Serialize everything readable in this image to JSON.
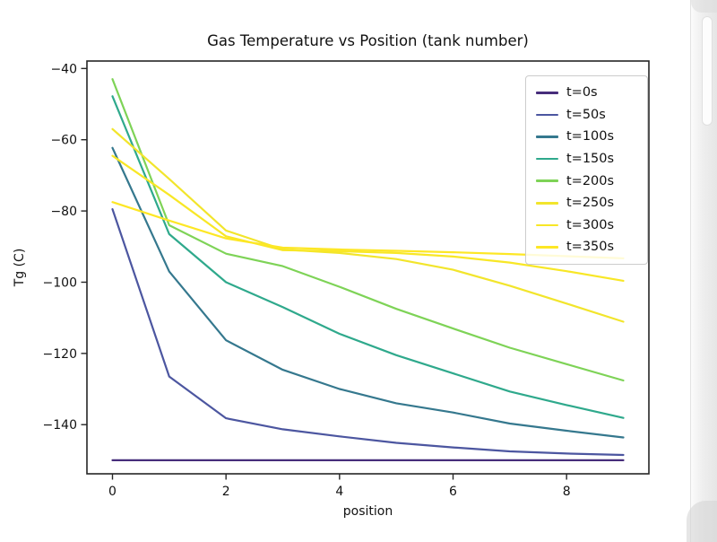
{
  "chart_data": {
    "type": "line",
    "title": "Gas Temperature vs Position (tank number)",
    "xlabel": "position",
    "ylabel": "Tg (C)",
    "x": [
      0,
      1,
      2,
      3,
      4,
      5,
      6,
      7,
      8,
      9
    ],
    "xlim": [
      -0.45,
      9.45
    ],
    "ylim": [
      -153.8,
      -37.9
    ],
    "grid": false,
    "legend_position": "upper right",
    "xticks": {
      "values": [
        0,
        2,
        4,
        6,
        8
      ],
      "labels": [
        "0",
        "2",
        "4",
        "6",
        "8"
      ]
    },
    "yticks": {
      "values": [
        -40,
        -60,
        -80,
        -100,
        -120,
        -140
      ],
      "labels": [
        "−40",
        "−60",
        "−80",
        "−100",
        "−120",
        "−140"
      ]
    },
    "series": [
      {
        "name": "t=0s",
        "color": "#472d7b",
        "values": [
          -150,
          -150,
          -150,
          -150,
          -150,
          -150,
          -150,
          -150,
          -150,
          -150
        ]
      },
      {
        "name": "t=50s",
        "color": "#4c56a0",
        "values": [
          -79.5,
          -126.5,
          -138.2,
          -141.3,
          -143.3,
          -145.1,
          -146.4,
          -147.5,
          -148.1,
          -148.5
        ]
      },
      {
        "name": "t=100s",
        "color": "#35788e",
        "values": [
          -62.3,
          -97,
          -116.3,
          -124.6,
          -130,
          -134,
          -136.6,
          -139.7,
          -141.7,
          -143.6
        ]
      },
      {
        "name": "t=150s",
        "color": "#2fa98c",
        "values": [
          -47.8,
          -86.5,
          -100,
          -107,
          -114.5,
          -120.5,
          -125.6,
          -130.7,
          -134.5,
          -138.1
        ]
      },
      {
        "name": "t=200s",
        "color": "#7ed357",
        "values": [
          -43,
          -84,
          -92,
          -95.5,
          -101.3,
          -107.5,
          -113,
          -118.4,
          -123,
          -127.6
        ]
      },
      {
        "name": "t=250s",
        "color": "#f2e52c",
        "values": [
          -57,
          -71,
          -85.5,
          -90.8,
          -91.8,
          -93.5,
          -96.5,
          -101,
          -106,
          -111.1
        ]
      },
      {
        "name": "t=300s",
        "color": "#f8e726",
        "values": [
          -64.5,
          -75.5,
          -87.1,
          -91,
          -91.3,
          -91.8,
          -92.8,
          -94.5,
          -96.9,
          -99.6
        ]
      },
      {
        "name": "t=350s",
        "color": "#fde725",
        "values": [
          -77.5,
          -82.7,
          -87.7,
          -90.3,
          -90.8,
          -91.2,
          -91.6,
          -92.1,
          -92.7,
          -93.3
        ]
      }
    ]
  },
  "window": {
    "axes_color": "#262626",
    "legend_border_color": "#cccccc"
  }
}
